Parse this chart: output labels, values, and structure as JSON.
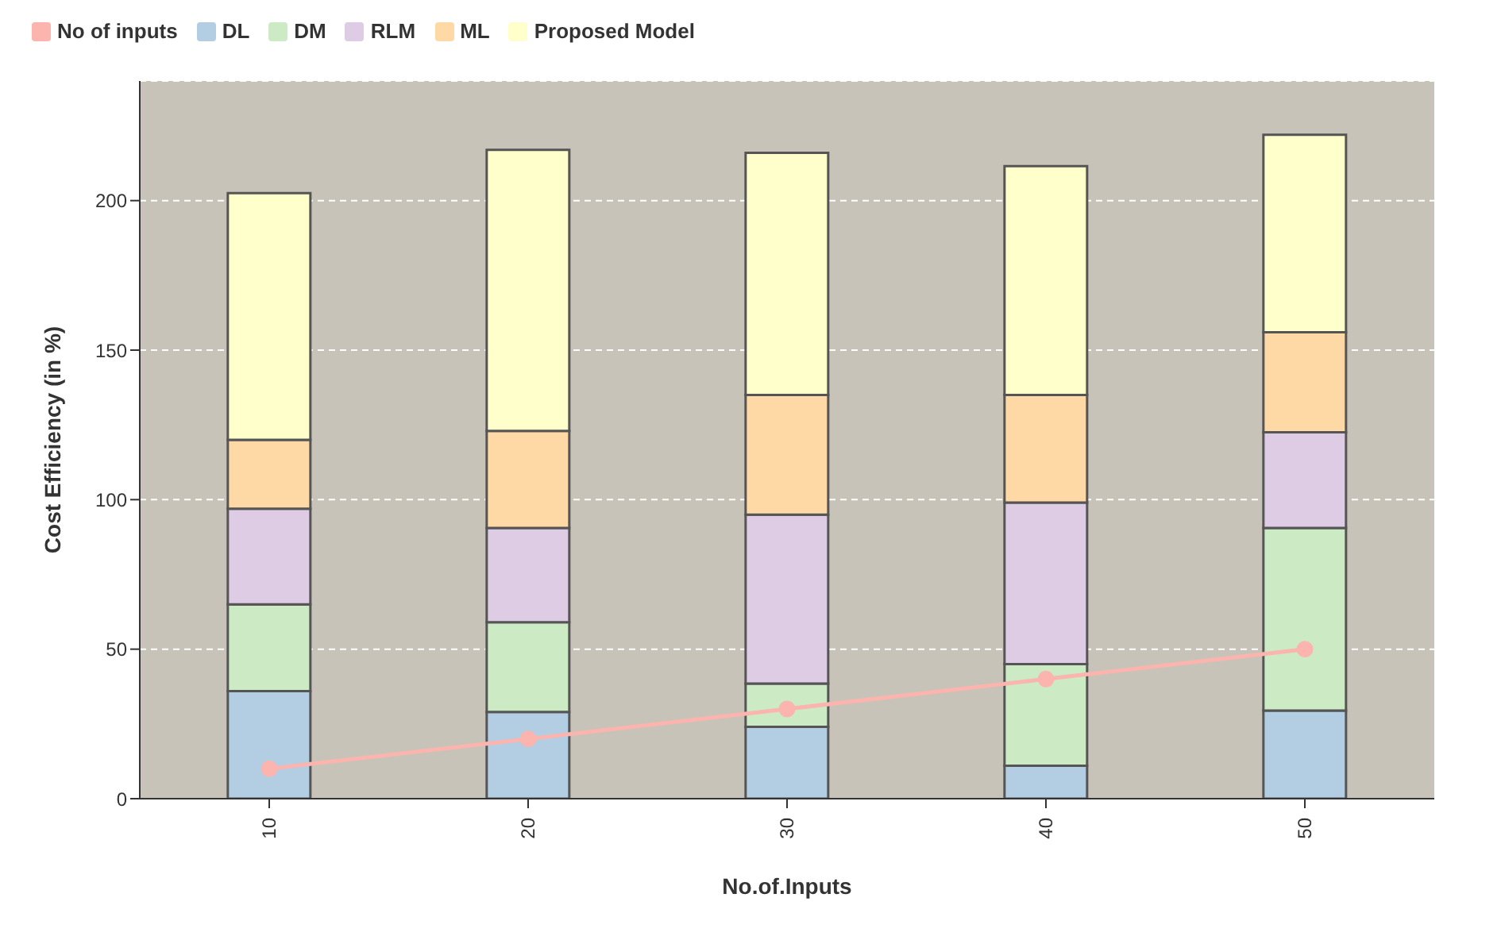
{
  "chart_data": {
    "type": "bar",
    "stacked": true,
    "xlabel": "No.of.Inputs",
    "ylabel": "Cost Efficiency (in %)",
    "categories": [
      "10",
      "20",
      "30",
      "40",
      "50"
    ],
    "series": [
      {
        "name": "No of inputs",
        "type": "line",
        "color": "#fbb4ae",
        "values": [
          10,
          20,
          30,
          40,
          50
        ],
        "marker": "circle"
      },
      {
        "name": "DL",
        "color": "#b3cde3",
        "values": [
          36,
          29,
          24,
          11,
          29.5
        ]
      },
      {
        "name": "DM",
        "color": "#ccebc5",
        "values": [
          29,
          30,
          14.5,
          34,
          61
        ]
      },
      {
        "name": "RLM",
        "color": "#decbe4",
        "values": [
          32,
          31.5,
          56.5,
          54,
          32
        ]
      },
      {
        "name": "ML",
        "color": "#fed9a6",
        "values": [
          23,
          32.5,
          40,
          36,
          33.5
        ]
      },
      {
        "name": "Proposed Model",
        "color": "#ffffcc",
        "values": [
          82.5,
          94,
          81,
          76.5,
          66
        ]
      }
    ],
    "ylim": [
      0,
      240
    ],
    "yticks": [
      0,
      50,
      100,
      150,
      200
    ],
    "grid": "y",
    "legend": "top left"
  }
}
